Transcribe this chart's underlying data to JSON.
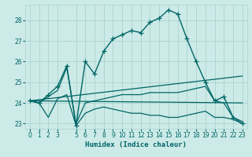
{
  "xlabel": "Humidex (Indice chaleur)",
  "background_color": "#cceae7",
  "grid_color": "#aad4d0",
  "line_color": "#006666",
  "xlim": [
    -0.5,
    23.5
  ],
  "ylim": [
    22.75,
    28.75
  ],
  "yticks": [
    23,
    24,
    25,
    26,
    27,
    28
  ],
  "xticks": [
    0,
    1,
    2,
    3,
    5,
    6,
    7,
    8,
    9,
    10,
    11,
    12,
    13,
    14,
    15,
    16,
    17,
    18,
    19,
    20,
    21,
    22,
    23
  ],
  "series": [
    {
      "x": [
        0,
        1,
        2,
        3,
        4,
        5,
        6,
        7,
        8,
        9,
        10,
        11,
        12,
        13,
        14,
        15,
        16,
        17,
        18,
        19,
        20,
        21,
        22,
        23
      ],
      "y": [
        24.1,
        24.0,
        24.4,
        24.8,
        25.8,
        22.9,
        26.0,
        25.4,
        26.5,
        27.1,
        27.3,
        27.5,
        27.4,
        27.9,
        28.1,
        28.5,
        28.3,
        27.1,
        26.0,
        25.0,
        24.1,
        24.3,
        23.3,
        23.0
      ],
      "marker": "+",
      "linewidth": 1.0,
      "markersize": 4
    },
    {
      "x": [
        0,
        1,
        2,
        3,
        4,
        5,
        6,
        7,
        8,
        9,
        10,
        11,
        12,
        13,
        14,
        15,
        16,
        17,
        18,
        19,
        20,
        21,
        22,
        23
      ],
      "y": [
        24.1,
        24.0,
        23.3,
        24.2,
        24.4,
        22.9,
        23.5,
        23.7,
        23.8,
        23.7,
        23.6,
        23.5,
        23.5,
        23.4,
        23.4,
        23.3,
        23.3,
        23.4,
        23.5,
        23.6,
        23.3,
        23.3,
        23.2,
        23.0
      ],
      "marker": null,
      "linewidth": 0.9,
      "markersize": 0
    },
    {
      "x": [
        0,
        23
      ],
      "y": [
        24.1,
        24.0
      ],
      "marker": null,
      "linewidth": 0.9,
      "markersize": 0
    },
    {
      "x": [
        0,
        23
      ],
      "y": [
        24.1,
        25.3
      ],
      "marker": null,
      "linewidth": 0.9,
      "markersize": 0
    },
    {
      "x": [
        0,
        1,
        2,
        3,
        4,
        5,
        6,
        7,
        8,
        9,
        10,
        11,
        12,
        13,
        14,
        15,
        16,
        17,
        18,
        19,
        20,
        21,
        22,
        23
      ],
      "y": [
        24.1,
        24.0,
        24.3,
        24.6,
        25.7,
        23.0,
        24.0,
        24.1,
        24.2,
        24.3,
        24.4,
        24.4,
        24.4,
        24.5,
        24.5,
        24.5,
        24.5,
        24.6,
        24.7,
        24.8,
        24.1,
        24.0,
        23.3,
        23.1
      ],
      "marker": null,
      "linewidth": 0.9,
      "markersize": 0
    }
  ]
}
